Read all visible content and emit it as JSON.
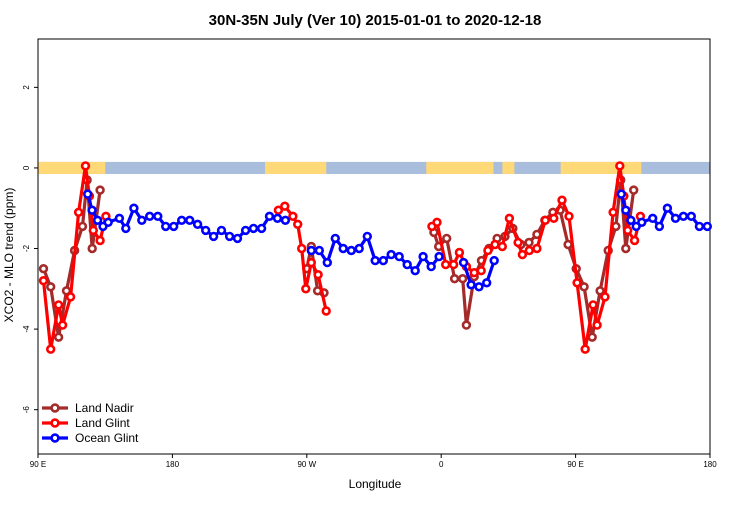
{
  "chart_data": {
    "type": "line",
    "title": "30N-35N July (Ver 10)   2015-01-01 to 2020-12-18",
    "xlabel": "Longitude",
    "ylabel": "XCO2 - MLO trend (ppm)",
    "x_ticks": [
      {
        "value": 90,
        "label": "90 E"
      },
      {
        "value": 180,
        "label": "180"
      },
      {
        "value": 270,
        "label": "90 W"
      },
      {
        "value": 360,
        "label": "0"
      },
      {
        "value": 450,
        "label": "90 E"
      },
      {
        "value": 540,
        "label": "180"
      }
    ],
    "y_ticks": [
      {
        "value": 2,
        "label": "2"
      },
      {
        "value": 0,
        "label": "0"
      },
      {
        "value": -2,
        "label": "-2"
      },
      {
        "value": -4,
        "label": "-4"
      },
      {
        "value": -6,
        "label": "-6"
      }
    ],
    "xlim": [
      90,
      540
    ],
    "ylim": [
      -7.1,
      3.2
    ],
    "grid": false,
    "legend_position": "bottom-left",
    "land_ocean_band": {
      "y_range": [
        -0.15,
        0.15
      ],
      "ocean_color": "#a9bedd",
      "land_color": "#ffd978",
      "land_segments": [
        [
          90,
          135
        ],
        [
          242,
          283
        ],
        [
          350,
          395
        ],
        [
          401,
          409
        ],
        [
          440,
          494
        ]
      ]
    },
    "series": [
      {
        "name": "Land Nadir",
        "color": "#a52a2a",
        "segments": [
          [
            [
              93.7,
              -2.5
            ],
            [
              98.5,
              -2.95
            ],
            [
              103.8,
              -4.2
            ],
            [
              109.1,
              -3.05
            ],
            [
              114.5,
              -2.05
            ],
            [
              119.8,
              -1.45
            ],
            [
              122.9,
              -0.3
            ],
            [
              126.3,
              -2.0
            ],
            [
              131.6,
              -0.55
            ]
          ],
          [
            [
              270.0,
              -2.5
            ],
            [
              273.0,
              -1.95
            ],
            [
              277.2,
              -3.05
            ],
            [
              281.5,
              -3.1
            ]
          ],
          [
            [
              355.1,
              -1.6
            ],
            [
              358.3,
              -1.95
            ],
            [
              363.7,
              -1.75
            ],
            [
              369.0,
              -2.75
            ],
            [
              374.4,
              -2.75
            ],
            [
              376.9,
              -3.9
            ],
            [
              382.1,
              -2.7
            ],
            [
              387.0,
              -2.3
            ],
            [
              392.0,
              -2.0
            ],
            [
              397.4,
              -1.75
            ],
            [
              402.7,
              -1.7
            ],
            [
              408.0,
              -1.5
            ],
            [
              413.4,
              -1.9
            ],
            [
              418.8,
              -1.85
            ],
            [
              424.1,
              -1.65
            ],
            [
              429.4,
              -1.3
            ],
            [
              434.8,
              -1.1
            ],
            [
              439.6,
              -1.05
            ],
            [
              445.0,
              -1.9
            ],
            [
              450.4,
              -2.5
            ],
            [
              455.7,
              -2.95
            ],
            [
              461.1,
              -4.2
            ],
            [
              466.4,
              -3.05
            ],
            [
              471.8,
              -2.05
            ],
            [
              477.0,
              -1.45
            ],
            [
              480.2,
              -0.3
            ],
            [
              483.6,
              -2.0
            ],
            [
              488.9,
              -0.55
            ]
          ]
        ]
      },
      {
        "name": "Land Glint",
        "color": "#ff0000",
        "segments": [
          [
            [
              93.7,
              -2.8
            ],
            [
              98.5,
              -4.5
            ],
            [
              103.8,
              -3.4
            ],
            [
              106.5,
              -3.9
            ],
            [
              111.8,
              -3.2
            ],
            [
              117.2,
              -1.1
            ],
            [
              121.8,
              0.05
            ],
            [
              124.4,
              -0.7
            ],
            [
              127.0,
              -1.55
            ],
            [
              131.6,
              -1.8
            ],
            [
              135.5,
              -1.2
            ]
          ],
          [
            [
              251.0,
              -1.05
            ],
            [
              255.3,
              -0.95
            ],
            [
              260.7,
              -1.2
            ],
            [
              263.9,
              -1.4
            ],
            [
              266.6,
              -2.0
            ],
            [
              269.3,
              -3.0
            ],
            [
              273.0,
              -2.35
            ],
            [
              277.6,
              -2.65
            ],
            [
              283.0,
              -3.55
            ]
          ],
          [
            [
              353.8,
              -1.45
            ],
            [
              357.2,
              -1.35
            ],
            [
              363.0,
              -2.4
            ],
            [
              368.3,
              -2.4
            ],
            [
              372.2,
              -2.1
            ],
            [
              376.9,
              -2.45
            ],
            [
              382.1,
              -2.6
            ],
            [
              386.8,
              -2.55
            ],
            [
              391.3,
              -2.05
            ],
            [
              396.0,
              -1.9
            ],
            [
              400.9,
              -1.95
            ],
            [
              405.7,
              -1.25
            ],
            [
              411.5,
              -1.85
            ],
            [
              414.4,
              -2.15
            ],
            [
              419.0,
              -2.05
            ],
            [
              424.1,
              -2.0
            ],
            [
              429.7,
              -1.3
            ],
            [
              435.4,
              -1.25
            ],
            [
              440.9,
              -0.8
            ],
            [
              445.6,
              -1.2
            ],
            [
              451.0,
              -2.85
            ],
            [
              456.4,
              -4.5
            ],
            [
              461.7,
              -3.4
            ],
            [
              464.4,
              -3.9
            ],
            [
              469.7,
              -3.2
            ],
            [
              475.1,
              -1.1
            ],
            [
              479.6,
              0.05
            ],
            [
              482.3,
              -0.7
            ],
            [
              484.9,
              -1.55
            ],
            [
              489.5,
              -1.8
            ],
            [
              493.4,
              -1.2
            ]
          ]
        ]
      },
      {
        "name": "Ocean Glint",
        "color": "#0000ff",
        "segments": [
          [
            [
              123.3,
              -0.65
            ],
            [
              126.2,
              -1.05
            ],
            [
              129.9,
              -1.3
            ],
            [
              133.5,
              -1.45
            ],
            [
              137.0,
              -1.35
            ],
            [
              144.5,
              -1.25
            ],
            [
              148.8,
              -1.5
            ],
            [
              154.2,
              -1.0
            ],
            [
              159.5,
              -1.3
            ],
            [
              164.8,
              -1.2
            ],
            [
              170.2,
              -1.2
            ],
            [
              175.5,
              -1.45
            ],
            [
              180.9,
              -1.45
            ],
            [
              186.2,
              -1.3
            ],
            [
              191.6,
              -1.3
            ],
            [
              196.9,
              -1.4
            ],
            [
              202.3,
              -1.55
            ],
            [
              207.6,
              -1.7
            ],
            [
              212.9,
              -1.55
            ],
            [
              218.3,
              -1.7
            ],
            [
              223.6,
              -1.75
            ],
            [
              229.0,
              -1.55
            ],
            [
              234.3,
              -1.5
            ],
            [
              239.7,
              -1.5
            ],
            [
              245.0,
              -1.2
            ],
            [
              250.4,
              -1.25
            ],
            [
              255.7,
              -1.3
            ]
          ],
          [
            [
              273.0,
              -2.05
            ],
            [
              278.4,
              -2.05
            ],
            [
              283.7,
              -2.35
            ],
            [
              289.1,
              -1.75
            ],
            [
              294.4,
              -2.0
            ],
            [
              299.8,
              -2.05
            ],
            [
              305.1,
              -2.0
            ],
            [
              310.5,
              -1.7
            ],
            [
              315.8,
              -2.3
            ],
            [
              321.2,
              -2.3
            ],
            [
              326.5,
              -2.15
            ],
            [
              331.9,
              -2.2
            ],
            [
              337.2,
              -2.4
            ],
            [
              342.6,
              -2.55
            ],
            [
              347.9,
              -2.2
            ],
            [
              353.3,
              -2.45
            ],
            [
              358.6,
              -2.2
            ]
          ],
          [
            [
              375.0,
              -2.35
            ],
            [
              380.0,
              -2.9
            ],
            [
              385.3,
              -2.95
            ],
            [
              390.5,
              -2.85
            ],
            [
              395.5,
              -2.3
            ]
          ],
          [
            [
              480.6,
              -0.65
            ],
            [
              483.6,
              -1.05
            ],
            [
              487.0,
              -1.3
            ],
            [
              490.6,
              -1.45
            ],
            [
              494.3,
              -1.35
            ],
            [
              501.6,
              -1.25
            ],
            [
              506.1,
              -1.45
            ],
            [
              511.5,
              -1.0
            ],
            [
              516.9,
              -1.25
            ],
            [
              522.2,
              -1.2
            ],
            [
              527.5,
              -1.2
            ],
            [
              532.9,
              -1.45
            ],
            [
              538.2,
              -1.45
            ]
          ]
        ]
      }
    ]
  }
}
